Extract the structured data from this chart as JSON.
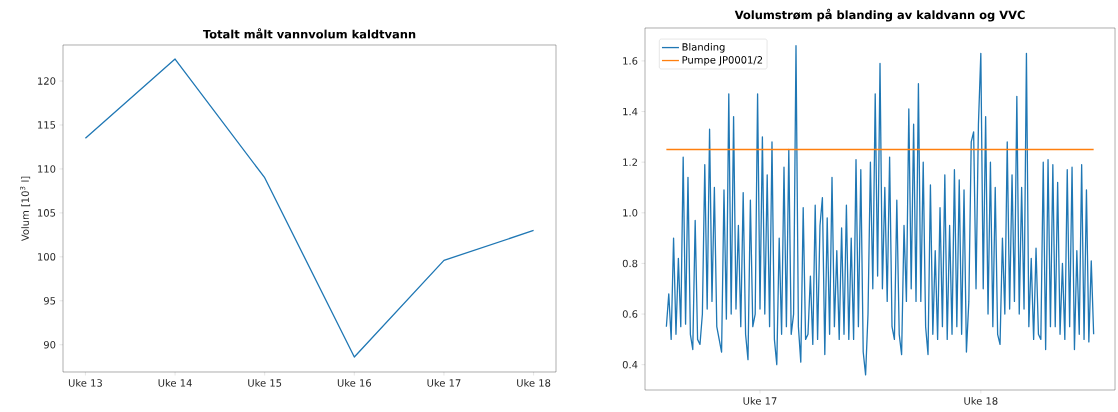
{
  "chart_data": [
    {
      "type": "line",
      "title": "Totalt målt vannvolum kaldtvann",
      "ylabel": "Volum [10$^{3}$ l]",
      "categories": [
        "Uke 13",
        "Uke 14",
        "Uke 15",
        "Uke 16",
        "Uke 17",
        "Uke 18"
      ],
      "series": [
        {
          "color": "#1f77b4",
          "values": [
            113.5,
            122.5,
            109.0,
            88.6,
            99.6,
            103.0
          ]
        }
      ],
      "ylim": [
        86.9,
        124.1
      ],
      "yticks": [
        90,
        95,
        100,
        105,
        110,
        115,
        120
      ],
      "grid": false,
      "marker": "none",
      "line_style": "solid"
    },
    {
      "type": "line",
      "title": "Volumstrøm på blanding av kaldvann og VVC",
      "categories": [
        null,
        null,
        null,
        null,
        null,
        null,
        null,
        null,
        null,
        null,
        null,
        null,
        null,
        null,
        null,
        null,
        null,
        null,
        null,
        null,
        null,
        null,
        null,
        null,
        null,
        null,
        null,
        null,
        null,
        null,
        null,
        null,
        null,
        null,
        null,
        null,
        null,
        null,
        null,
        "Uke 17",
        null,
        null,
        null,
        null,
        null,
        null,
        null,
        null,
        null,
        null,
        null,
        null,
        null,
        null,
        null,
        null,
        null,
        null,
        null,
        null,
        null,
        null,
        null,
        null,
        null,
        null,
        null,
        null,
        null,
        null,
        null,
        null,
        null,
        null,
        null,
        null,
        null,
        null,
        null,
        null,
        null,
        null,
        null,
        null,
        null,
        null,
        null,
        null,
        null,
        null,
        null,
        null,
        null,
        null,
        null,
        null,
        null,
        null,
        null,
        null,
        null,
        null,
        null,
        null,
        null,
        null,
        null,
        null,
        null,
        null,
        null,
        null,
        null,
        null,
        null,
        null,
        null,
        null,
        null,
        null,
        null,
        null,
        null,
        null,
        null,
        null,
        null,
        null,
        null,
        null,
        null,
        "Uke 18",
        null,
        null,
        null,
        null,
        null,
        null,
        null,
        null,
        null,
        null,
        null,
        null,
        null,
        null,
        null,
        null,
        null,
        null,
        null,
        null,
        null,
        null,
        null,
        null,
        null,
        null,
        null,
        null,
        null,
        null,
        null,
        null,
        null,
        null,
        null,
        null,
        null,
        null,
        null,
        null,
        null,
        null,
        null,
        null,
        null,
        null,
        null
      ],
      "series": [
        {
          "name": "Blanding",
          "color": "#1f77b4",
          "values": [
            0.55,
            0.68,
            0.5,
            0.9,
            0.52,
            0.82,
            0.55,
            1.22,
            0.56,
            1.14,
            0.52,
            0.46,
            0.97,
            0.5,
            0.48,
            0.6,
            1.19,
            0.62,
            1.33,
            0.65,
            1.1,
            0.55,
            0.5,
            0.45,
            1.09,
            0.58,
            1.47,
            0.6,
            1.38,
            0.62,
            0.95,
            0.55,
            1.08,
            0.52,
            0.42,
            1.05,
            0.55,
            0.6,
            1.47,
            0.62,
            1.3,
            0.6,
            1.15,
            0.55,
            1.28,
            0.5,
            0.4,
            0.9,
            0.52,
            1.18,
            0.55,
            1.25,
            0.52,
            0.6,
            1.66,
            0.55,
            0.41,
            1.02,
            0.5,
            0.52,
            0.75,
            0.48,
            1.03,
            0.5,
            0.95,
            1.06,
            0.44,
            0.98,
            0.52,
            1.14,
            0.55,
            0.85,
            0.5,
            0.94,
            0.52,
            1.03,
            0.5,
            0.9,
            0.5,
            1.21,
            0.55,
            1.17,
            0.45,
            0.36,
            0.6,
            1.2,
            0.7,
            1.47,
            0.75,
            1.59,
            0.7,
            1.1,
            0.65,
            1.22,
            0.55,
            0.5,
            1.05,
            0.52,
            0.44,
            0.95,
            0.65,
            1.41,
            0.7,
            1.35,
            0.65,
            1.51,
            0.65,
            1.2,
            0.55,
            0.44,
            1.11,
            0.52,
            0.85,
            0.5,
            1.02,
            0.55,
            1.15,
            0.5,
            0.95,
            0.52,
            1.17,
            0.55,
            1.13,
            0.52,
            1.09,
            0.45,
            0.65,
            1.28,
            1.32,
            0.7,
            1.35,
            1.63,
            0.7,
            1.38,
            0.6,
            1.2,
            0.55,
            1.1,
            0.52,
            0.48,
            0.9,
            0.6,
            1.28,
            0.62,
            1.15,
            0.65,
            1.46,
            0.6,
            1.1,
            0.62,
            1.63,
            0.55,
            0.82,
            0.5,
            0.86,
            0.52,
            0.5,
            1.2,
            0.46,
            1.21,
            0.55,
            1.19,
            0.55,
            1.12,
            0.52,
            0.8,
            0.5,
            1.17,
            0.55,
            1.18,
            0.46,
            0.85,
            0.52,
            1.19,
            0.5,
            1.09,
            0.49,
            0.81,
            0.52
          ]
        },
        {
          "name": "Pumpe JP0001/2",
          "color": "#ff7f0e",
          "values": [
            1.25,
            1.25,
            1.25,
            1.25,
            1.25,
            1.25,
            1.25,
            1.25,
            1.25,
            1.25,
            1.25,
            1.25,
            1.25,
            1.25,
            1.25,
            1.25,
            1.25,
            1.25,
            1.25,
            1.25,
            1.25,
            1.25,
            1.25,
            1.25,
            1.25,
            1.25,
            1.25,
            1.25,
            1.25,
            1.25,
            1.25,
            1.25,
            1.25,
            1.25,
            1.25,
            1.25,
            1.25,
            1.25,
            1.25,
            1.25,
            1.25,
            1.25,
            1.25,
            1.25,
            1.25,
            1.25,
            1.25,
            1.25,
            1.25,
            1.25,
            1.25,
            1.25,
            1.25,
            1.25,
            1.25,
            1.25,
            1.25,
            1.25,
            1.25,
            1.25,
            1.25,
            1.25,
            1.25,
            1.25,
            1.25,
            1.25,
            1.25,
            1.25,
            1.25,
            1.25,
            1.25,
            1.25,
            1.25,
            1.25,
            1.25,
            1.25,
            1.25,
            1.25,
            1.25,
            1.25,
            1.25,
            1.25,
            1.25,
            1.25,
            1.25,
            1.25,
            1.25,
            1.25,
            1.25,
            1.25,
            1.25,
            1.25,
            1.25,
            1.25,
            1.25,
            1.25,
            1.25,
            1.25,
            1.25,
            1.25,
            1.25,
            1.25,
            1.25,
            1.25,
            1.25,
            1.25,
            1.25,
            1.25,
            1.25,
            1.25,
            1.25,
            1.25,
            1.25,
            1.25,
            1.25,
            1.25,
            1.25,
            1.25,
            1.25,
            1.25,
            1.25,
            1.25,
            1.25,
            1.25,
            1.25,
            1.25,
            1.25,
            1.25,
            1.25,
            1.25,
            1.25,
            1.25,
            1.25,
            1.25,
            1.25,
            1.25,
            1.25,
            1.25,
            1.25,
            1.25,
            1.25,
            1.25,
            1.25,
            1.25,
            1.25,
            1.25,
            1.25,
            1.25,
            1.25,
            1.25,
            1.25,
            1.25,
            1.25,
            1.25,
            1.25,
            1.25,
            1.25,
            1.25,
            1.25,
            1.25,
            1.25,
            1.25,
            1.25,
            1.25,
            1.25,
            1.25,
            1.25,
            1.25,
            1.25,
            1.25,
            1.25,
            1.25,
            1.25,
            1.25,
            1.25,
            1.25,
            1.25,
            1.25,
            1.25
          ]
        }
      ],
      "ylim": [
        0.3,
        1.73
      ],
      "yticks": [
        0.4,
        0.6,
        0.8,
        {
          "value": 1.0,
          "label": "1.0"
        },
        1.2,
        1.4,
        1.6
      ],
      "legend": "top left",
      "grid": false,
      "marker": "none",
      "line_style": "solid"
    }
  ]
}
